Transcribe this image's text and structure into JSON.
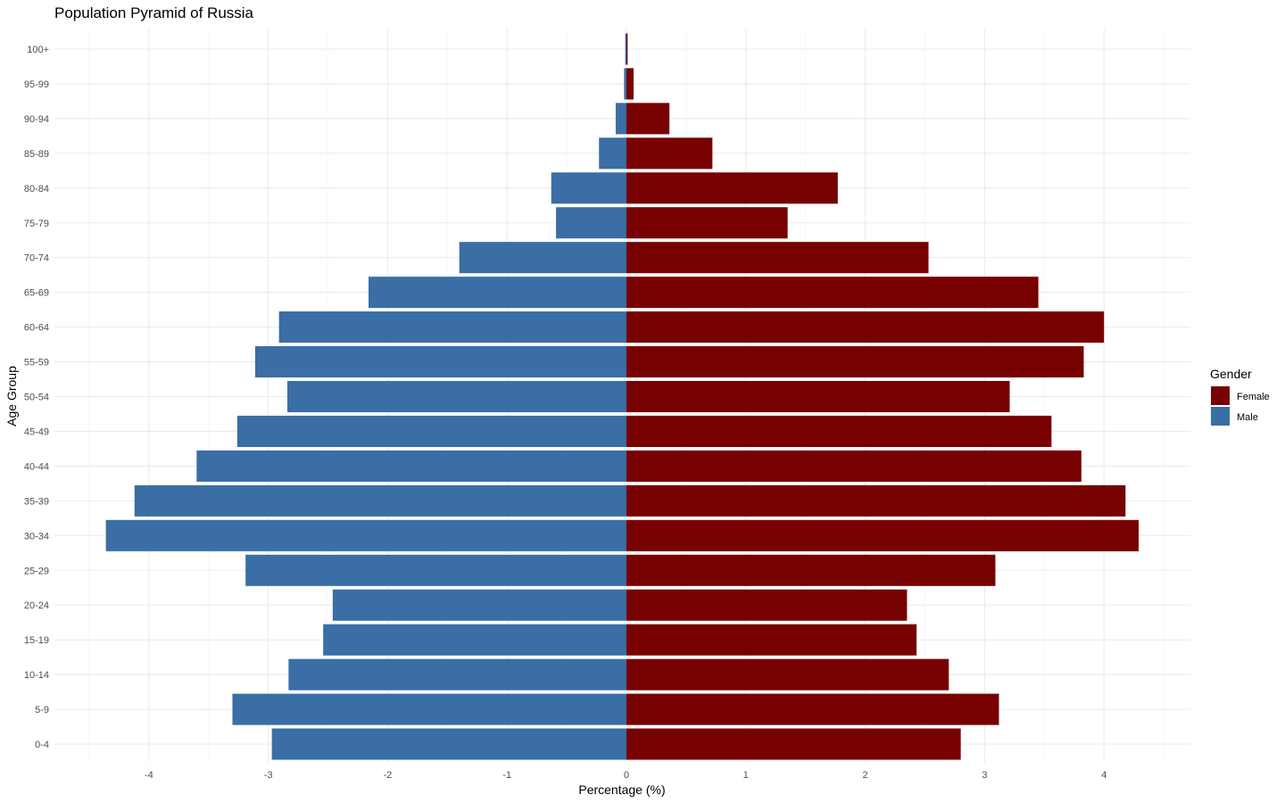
{
  "chart_data": {
    "type": "bar",
    "orientation": "horizontal",
    "title": "Population Pyramid of Russia",
    "xlabel": "Percentage (%)",
    "ylabel": "Age Group",
    "xlim": [
      -4.5,
      4.5
    ],
    "x_ticks": [
      -4,
      -3,
      -2,
      -1,
      0,
      1,
      2,
      3,
      4
    ],
    "grid": true,
    "legend": {
      "title": "Gender",
      "position": "right",
      "entries": [
        {
          "label": "Female",
          "color": "#770000"
        },
        {
          "label": "Male",
          "color": "#3a6ea5"
        }
      ]
    },
    "categories": [
      "0-4",
      "5-9",
      "10-14",
      "15-19",
      "20-24",
      "25-29",
      "30-34",
      "35-39",
      "40-44",
      "45-49",
      "50-54",
      "55-59",
      "60-64",
      "65-69",
      "70-74",
      "75-79",
      "80-84",
      "85-89",
      "90-94",
      "95-99",
      "100+"
    ],
    "series": [
      {
        "name": "Female",
        "color": "#770000",
        "values": [
          2.8,
          3.12,
          2.7,
          2.43,
          2.35,
          3.09,
          4.29,
          4.18,
          3.81,
          3.56,
          3.21,
          3.83,
          4.0,
          3.45,
          2.53,
          1.35,
          1.77,
          0.72,
          0.36,
          0.06,
          0.01
        ]
      },
      {
        "name": "Male",
        "color": "#3a6ea5",
        "values": [
          -2.97,
          -3.3,
          -2.83,
          -2.54,
          -2.46,
          -3.19,
          -4.36,
          -4.12,
          -3.6,
          -3.26,
          -2.84,
          -3.11,
          -2.91,
          -2.16,
          -1.4,
          -0.59,
          -0.63,
          -0.23,
          -0.09,
          -0.02,
          -0.01
        ]
      }
    ]
  }
}
